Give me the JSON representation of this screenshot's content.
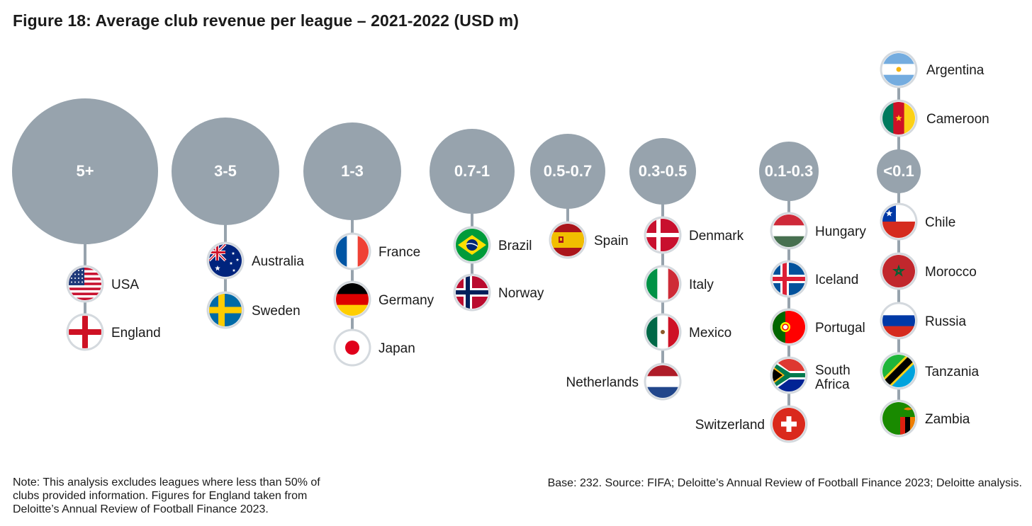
{
  "title": "Figure 18: Average club revenue per league – 2021-2022 (USD m)",
  "note": "Note: This analysis excludes leagues where less than 50% of clubs provided information. Figures for England taken from Deloitte’s Annual Review of Football Finance 2023.",
  "source": "Base: 232. Source: FIFA; Deloitte’s Annual Review of Football Finance 2023; Deloitte analysis.",
  "colors": {
    "bubble": "#97a3ad",
    "connector": "#97a3ad",
    "flag_ring": "#d4d9de"
  },
  "groups": [
    {
      "label": "5+",
      "countries_below": [
        {
          "name": "USA",
          "flag": "usa-flag-icon"
        },
        {
          "name": "England",
          "flag": "england-flag-icon"
        }
      ]
    },
    {
      "label": "3-5",
      "countries_below": [
        {
          "name": "Australia",
          "flag": "australia-flag-icon"
        },
        {
          "name": "Sweden",
          "flag": "sweden-flag-icon"
        }
      ]
    },
    {
      "label": "1-3",
      "countries_below": [
        {
          "name": "France",
          "flag": "france-flag-icon"
        },
        {
          "name": "Germany",
          "flag": "germany-flag-icon"
        },
        {
          "name": "Japan",
          "flag": "japan-flag-icon"
        }
      ]
    },
    {
      "label": "0.7-1",
      "countries_below": [
        {
          "name": "Brazil",
          "flag": "brazil-flag-icon"
        },
        {
          "name": "Norway",
          "flag": "norway-flag-icon"
        }
      ]
    },
    {
      "label": "0.5-0.7",
      "countries_below": [
        {
          "name": "Spain",
          "flag": "spain-flag-icon"
        }
      ]
    },
    {
      "label": "0.3-0.5",
      "countries_below": [
        {
          "name": "Denmark",
          "flag": "denmark-flag-icon"
        },
        {
          "name": "Italy",
          "flag": "italy-flag-icon"
        },
        {
          "name": "Mexico",
          "flag": "mexico-flag-icon"
        },
        {
          "name": "Netherlands",
          "flag": "netherlands-flag-icon"
        }
      ]
    },
    {
      "label": "0.1-0.3",
      "countries_below": [
        {
          "name": "Hungary",
          "flag": "hungary-flag-icon"
        },
        {
          "name": "Iceland",
          "flag": "iceland-flag-icon"
        },
        {
          "name": "Portugal",
          "flag": "portugal-flag-icon"
        },
        {
          "name": "South Africa",
          "flag": "south-africa-flag-icon"
        },
        {
          "name": "Switzerland",
          "flag": "switzerland-flag-icon"
        }
      ]
    },
    {
      "label": "<0.1",
      "countries_above": [
        {
          "name": "Argentina",
          "flag": "argentina-flag-icon"
        },
        {
          "name": "Cameroon",
          "flag": "cameroon-flag-icon"
        }
      ],
      "countries_below": [
        {
          "name": "Chile",
          "flag": "chile-flag-icon"
        },
        {
          "name": "Morocco",
          "flag": "morocco-flag-icon"
        },
        {
          "name": "Russia",
          "flag": "russia-flag-icon"
        },
        {
          "name": "Tanzania",
          "flag": "tanzania-flag-icon"
        },
        {
          "name": "Zambia",
          "flag": "zambia-flag-icon"
        }
      ]
    }
  ]
}
